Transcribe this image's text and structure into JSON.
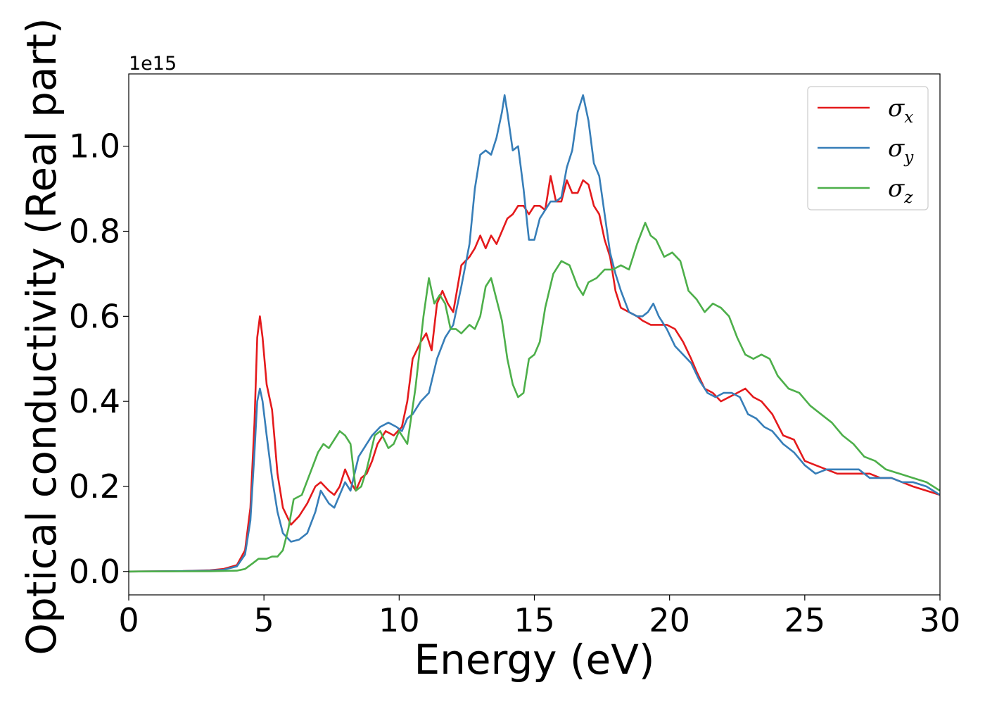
{
  "chart_data": {
    "type": "line",
    "title": "",
    "xlabel": "Energy (eV)",
    "ylabel": "Optical conductivity (Real part)",
    "y_offset_label": "1e15",
    "xlim": [
      0,
      30
    ],
    "ylim": [
      -0.055,
      1.17
    ],
    "y_scale_factor": 1000000000000000.0,
    "xticks": [
      0,
      5,
      10,
      15,
      20,
      25,
      30
    ],
    "xtick_labels": [
      "0",
      "5",
      "10",
      "15",
      "20",
      "25",
      "30"
    ],
    "yticks": [
      0.0,
      0.2,
      0.4,
      0.6,
      0.8,
      1.0
    ],
    "ytick_labels": [
      "0.0",
      "0.2",
      "0.4",
      "0.6",
      "0.8",
      "1.0"
    ],
    "grid": false,
    "legend_position": "top-right",
    "series": [
      {
        "name": "σx",
        "symbol": "σ",
        "subscript": "x",
        "color": "#e41a1c",
        "points": [
          [
            0,
            0
          ],
          [
            2,
            0.001
          ],
          [
            3,
            0.003
          ],
          [
            3.5,
            0.006
          ],
          [
            4,
            0.015
          ],
          [
            4.3,
            0.05
          ],
          [
            4.5,
            0.15
          ],
          [
            4.65,
            0.35
          ],
          [
            4.75,
            0.55
          ],
          [
            4.85,
            0.6
          ],
          [
            4.95,
            0.55
          ],
          [
            5.1,
            0.44
          ],
          [
            5.3,
            0.38
          ],
          [
            5.5,
            0.23
          ],
          [
            5.7,
            0.15
          ],
          [
            6.0,
            0.11
          ],
          [
            6.3,
            0.13
          ],
          [
            6.6,
            0.16
          ],
          [
            6.9,
            0.2
          ],
          [
            7.1,
            0.21
          ],
          [
            7.4,
            0.19
          ],
          [
            7.6,
            0.18
          ],
          [
            7.8,
            0.2
          ],
          [
            8.0,
            0.24
          ],
          [
            8.2,
            0.21
          ],
          [
            8.4,
            0.19
          ],
          [
            8.6,
            0.22
          ],
          [
            8.8,
            0.23
          ],
          [
            9.0,
            0.26
          ],
          [
            9.2,
            0.3
          ],
          [
            9.5,
            0.33
          ],
          [
            9.8,
            0.32
          ],
          [
            10.1,
            0.34
          ],
          [
            10.3,
            0.4
          ],
          [
            10.5,
            0.5
          ],
          [
            10.8,
            0.54
          ],
          [
            11.0,
            0.56
          ],
          [
            11.2,
            0.52
          ],
          [
            11.4,
            0.63
          ],
          [
            11.6,
            0.66
          ],
          [
            11.8,
            0.63
          ],
          [
            12.0,
            0.61
          ],
          [
            12.3,
            0.72
          ],
          [
            12.6,
            0.74
          ],
          [
            12.8,
            0.76
          ],
          [
            13.0,
            0.79
          ],
          [
            13.2,
            0.76
          ],
          [
            13.4,
            0.79
          ],
          [
            13.6,
            0.77
          ],
          [
            13.8,
            0.8
          ],
          [
            14.0,
            0.83
          ],
          [
            14.2,
            0.84
          ],
          [
            14.4,
            0.86
          ],
          [
            14.6,
            0.86
          ],
          [
            14.8,
            0.84
          ],
          [
            15.0,
            0.86
          ],
          [
            15.2,
            0.86
          ],
          [
            15.4,
            0.85
          ],
          [
            15.6,
            0.93
          ],
          [
            15.8,
            0.87
          ],
          [
            16.0,
            0.87
          ],
          [
            16.2,
            0.92
          ],
          [
            16.4,
            0.89
          ],
          [
            16.6,
            0.89
          ],
          [
            16.8,
            0.92
          ],
          [
            17.0,
            0.91
          ],
          [
            17.2,
            0.86
          ],
          [
            17.4,
            0.84
          ],
          [
            17.6,
            0.78
          ],
          [
            17.8,
            0.74
          ],
          [
            18.0,
            0.66
          ],
          [
            18.2,
            0.62
          ],
          [
            18.5,
            0.61
          ],
          [
            18.8,
            0.6
          ],
          [
            19.0,
            0.59
          ],
          [
            19.3,
            0.58
          ],
          [
            19.6,
            0.58
          ],
          [
            19.9,
            0.58
          ],
          [
            20.2,
            0.57
          ],
          [
            20.5,
            0.54
          ],
          [
            20.8,
            0.5
          ],
          [
            21.0,
            0.47
          ],
          [
            21.3,
            0.43
          ],
          [
            21.6,
            0.42
          ],
          [
            21.9,
            0.4
          ],
          [
            22.2,
            0.41
          ],
          [
            22.5,
            0.42
          ],
          [
            22.8,
            0.43
          ],
          [
            23.1,
            0.41
          ],
          [
            23.4,
            0.4
          ],
          [
            23.8,
            0.37
          ],
          [
            24.2,
            0.32
          ],
          [
            24.6,
            0.31
          ],
          [
            25.0,
            0.26
          ],
          [
            25.4,
            0.25
          ],
          [
            25.8,
            0.24
          ],
          [
            26.2,
            0.23
          ],
          [
            26.6,
            0.23
          ],
          [
            27.0,
            0.23
          ],
          [
            27.4,
            0.23
          ],
          [
            27.8,
            0.22
          ],
          [
            28.2,
            0.22
          ],
          [
            28.6,
            0.21
          ],
          [
            29.0,
            0.2
          ],
          [
            29.5,
            0.19
          ],
          [
            30.0,
            0.18
          ]
        ]
      },
      {
        "name": "σy",
        "symbol": "σ",
        "subscript": "y",
        "color": "#377eb8",
        "points": [
          [
            0,
            0
          ],
          [
            2,
            0.001
          ],
          [
            3,
            0.002
          ],
          [
            3.5,
            0.004
          ],
          [
            4,
            0.012
          ],
          [
            4.3,
            0.04
          ],
          [
            4.5,
            0.12
          ],
          [
            4.65,
            0.28
          ],
          [
            4.75,
            0.4
          ],
          [
            4.85,
            0.43
          ],
          [
            4.95,
            0.4
          ],
          [
            5.1,
            0.32
          ],
          [
            5.3,
            0.22
          ],
          [
            5.5,
            0.14
          ],
          [
            5.7,
            0.09
          ],
          [
            6.0,
            0.07
          ],
          [
            6.3,
            0.075
          ],
          [
            6.6,
            0.09
          ],
          [
            6.9,
            0.14
          ],
          [
            7.1,
            0.19
          ],
          [
            7.4,
            0.16
          ],
          [
            7.6,
            0.15
          ],
          [
            7.8,
            0.18
          ],
          [
            8.0,
            0.21
          ],
          [
            8.2,
            0.19
          ],
          [
            8.5,
            0.27
          ],
          [
            8.8,
            0.3
          ],
          [
            9.0,
            0.32
          ],
          [
            9.3,
            0.34
          ],
          [
            9.6,
            0.35
          ],
          [
            9.9,
            0.34
          ],
          [
            10.1,
            0.33
          ],
          [
            10.3,
            0.36
          ],
          [
            10.5,
            0.37
          ],
          [
            10.8,
            0.4
          ],
          [
            11.1,
            0.42
          ],
          [
            11.4,
            0.5
          ],
          [
            11.7,
            0.55
          ],
          [
            12.0,
            0.58
          ],
          [
            12.3,
            0.67
          ],
          [
            12.6,
            0.77
          ],
          [
            12.8,
            0.9
          ],
          [
            13.0,
            0.98
          ],
          [
            13.2,
            0.99
          ],
          [
            13.4,
            0.98
          ],
          [
            13.6,
            1.02
          ],
          [
            13.8,
            1.08
          ],
          [
            13.9,
            1.12
          ],
          [
            14.0,
            1.08
          ],
          [
            14.2,
            0.99
          ],
          [
            14.4,
            1.0
          ],
          [
            14.6,
            0.9
          ],
          [
            14.8,
            0.78
          ],
          [
            15.0,
            0.78
          ],
          [
            15.2,
            0.83
          ],
          [
            15.4,
            0.85
          ],
          [
            15.6,
            0.87
          ],
          [
            15.8,
            0.87
          ],
          [
            16.0,
            0.88
          ],
          [
            16.2,
            0.95
          ],
          [
            16.4,
            0.99
          ],
          [
            16.6,
            1.08
          ],
          [
            16.8,
            1.12
          ],
          [
            17.0,
            1.06
          ],
          [
            17.2,
            0.96
          ],
          [
            17.4,
            0.93
          ],
          [
            17.6,
            0.84
          ],
          [
            17.8,
            0.75
          ],
          [
            18.0,
            0.7
          ],
          [
            18.2,
            0.66
          ],
          [
            18.5,
            0.61
          ],
          [
            18.8,
            0.6
          ],
          [
            19.0,
            0.6
          ],
          [
            19.2,
            0.61
          ],
          [
            19.4,
            0.63
          ],
          [
            19.6,
            0.6
          ],
          [
            19.9,
            0.57
          ],
          [
            20.2,
            0.53
          ],
          [
            20.5,
            0.51
          ],
          [
            20.8,
            0.49
          ],
          [
            21.1,
            0.45
          ],
          [
            21.4,
            0.42
          ],
          [
            21.7,
            0.41
          ],
          [
            22.0,
            0.42
          ],
          [
            22.3,
            0.42
          ],
          [
            22.6,
            0.41
          ],
          [
            22.9,
            0.37
          ],
          [
            23.2,
            0.36
          ],
          [
            23.5,
            0.34
          ],
          [
            23.8,
            0.33
          ],
          [
            24.2,
            0.3
          ],
          [
            24.6,
            0.28
          ],
          [
            25.0,
            0.25
          ],
          [
            25.4,
            0.23
          ],
          [
            25.8,
            0.24
          ],
          [
            26.2,
            0.24
          ],
          [
            26.6,
            0.24
          ],
          [
            27.0,
            0.24
          ],
          [
            27.4,
            0.22
          ],
          [
            27.8,
            0.22
          ],
          [
            28.2,
            0.22
          ],
          [
            28.6,
            0.21
          ],
          [
            29.0,
            0.21
          ],
          [
            29.5,
            0.2
          ],
          [
            30.0,
            0.18
          ]
        ]
      },
      {
        "name": "σz",
        "symbol": "σ",
        "subscript": "z",
        "color": "#4daf4a",
        "points": [
          [
            0,
            0
          ],
          [
            3,
            0.0005
          ],
          [
            4,
            0.002
          ],
          [
            4.3,
            0.006
          ],
          [
            4.6,
            0.02
          ],
          [
            4.8,
            0.03
          ],
          [
            5.1,
            0.03
          ],
          [
            5.3,
            0.035
          ],
          [
            5.5,
            0.035
          ],
          [
            5.7,
            0.05
          ],
          [
            5.9,
            0.1
          ],
          [
            6.1,
            0.17
          ],
          [
            6.4,
            0.18
          ],
          [
            6.7,
            0.23
          ],
          [
            7.0,
            0.28
          ],
          [
            7.2,
            0.3
          ],
          [
            7.4,
            0.29
          ],
          [
            7.6,
            0.31
          ],
          [
            7.8,
            0.33
          ],
          [
            8.0,
            0.32
          ],
          [
            8.2,
            0.3
          ],
          [
            8.4,
            0.19
          ],
          [
            8.6,
            0.2
          ],
          [
            8.8,
            0.24
          ],
          [
            9.1,
            0.32
          ],
          [
            9.3,
            0.33
          ],
          [
            9.6,
            0.29
          ],
          [
            9.8,
            0.3
          ],
          [
            10.0,
            0.33
          ],
          [
            10.3,
            0.3
          ],
          [
            10.6,
            0.43
          ],
          [
            10.9,
            0.6
          ],
          [
            11.1,
            0.69
          ],
          [
            11.3,
            0.63
          ],
          [
            11.5,
            0.65
          ],
          [
            11.7,
            0.63
          ],
          [
            11.9,
            0.57
          ],
          [
            12.1,
            0.57
          ],
          [
            12.3,
            0.56
          ],
          [
            12.6,
            0.58
          ],
          [
            12.8,
            0.57
          ],
          [
            13.0,
            0.6
          ],
          [
            13.2,
            0.67
          ],
          [
            13.4,
            0.69
          ],
          [
            13.6,
            0.64
          ],
          [
            13.8,
            0.59
          ],
          [
            14.0,
            0.5
          ],
          [
            14.2,
            0.44
          ],
          [
            14.4,
            0.41
          ],
          [
            14.6,
            0.42
          ],
          [
            14.8,
            0.5
          ],
          [
            15.0,
            0.51
          ],
          [
            15.2,
            0.54
          ],
          [
            15.4,
            0.62
          ],
          [
            15.7,
            0.7
          ],
          [
            16.0,
            0.73
          ],
          [
            16.3,
            0.72
          ],
          [
            16.6,
            0.67
          ],
          [
            16.8,
            0.65
          ],
          [
            17.0,
            0.68
          ],
          [
            17.3,
            0.69
          ],
          [
            17.6,
            0.71
          ],
          [
            17.9,
            0.71
          ],
          [
            18.2,
            0.72
          ],
          [
            18.5,
            0.71
          ],
          [
            18.8,
            0.77
          ],
          [
            19.1,
            0.82
          ],
          [
            19.3,
            0.79
          ],
          [
            19.5,
            0.78
          ],
          [
            19.8,
            0.74
          ],
          [
            20.1,
            0.75
          ],
          [
            20.4,
            0.73
          ],
          [
            20.7,
            0.66
          ],
          [
            21.0,
            0.64
          ],
          [
            21.3,
            0.61
          ],
          [
            21.6,
            0.63
          ],
          [
            21.9,
            0.62
          ],
          [
            22.2,
            0.6
          ],
          [
            22.5,
            0.55
          ],
          [
            22.8,
            0.51
          ],
          [
            23.1,
            0.5
          ],
          [
            23.4,
            0.51
          ],
          [
            23.7,
            0.5
          ],
          [
            24.0,
            0.46
          ],
          [
            24.4,
            0.43
          ],
          [
            24.8,
            0.42
          ],
          [
            25.2,
            0.39
          ],
          [
            25.6,
            0.37
          ],
          [
            26.0,
            0.35
          ],
          [
            26.4,
            0.32
          ],
          [
            26.8,
            0.3
          ],
          [
            27.2,
            0.27
          ],
          [
            27.6,
            0.26
          ],
          [
            28.0,
            0.24
          ],
          [
            28.5,
            0.23
          ],
          [
            29.0,
            0.22
          ],
          [
            29.5,
            0.21
          ],
          [
            30.0,
            0.19
          ]
        ]
      }
    ]
  }
}
